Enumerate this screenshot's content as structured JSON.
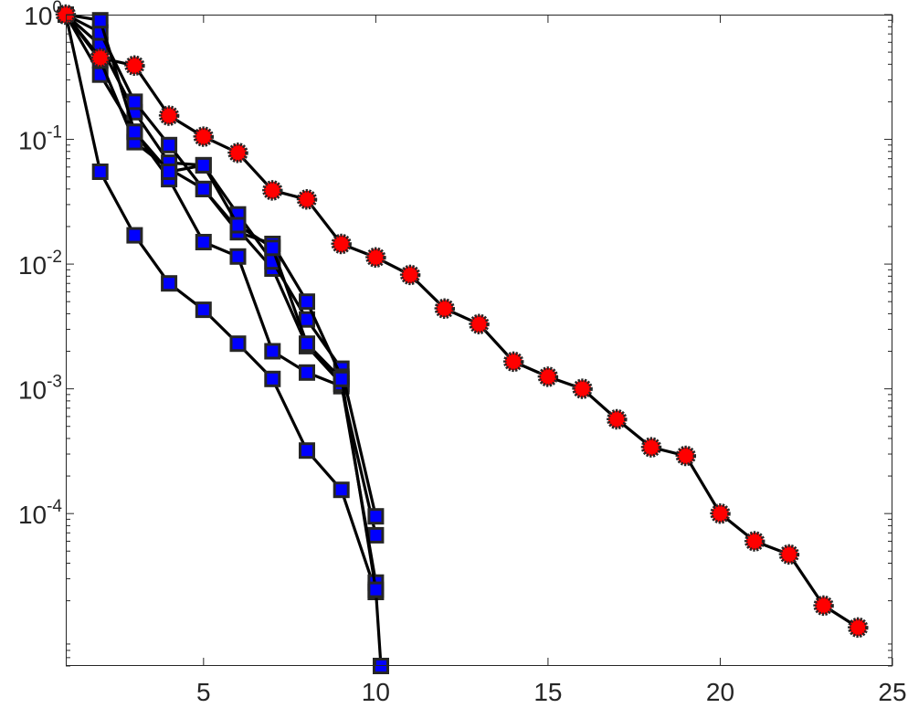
{
  "chart_data": {
    "type": "line",
    "y_scale": "log",
    "grid": false,
    "legend": "none",
    "xlim": [
      1,
      25
    ],
    "ylim": [
      6e-06,
      1
    ],
    "x_ticks": [
      {
        "value": 5,
        "label": "5"
      },
      {
        "value": 10,
        "label": "10"
      },
      {
        "value": 15,
        "label": "15"
      },
      {
        "value": 20,
        "label": "20"
      },
      {
        "value": 25,
        "label": "25"
      }
    ],
    "y_ticks": [
      {
        "value": 1,
        "base": "10",
        "exp": "0"
      },
      {
        "value": 0.1,
        "base": "10",
        "exp": "-1"
      },
      {
        "value": 0.01,
        "base": "10",
        "exp": "-2"
      },
      {
        "value": 0.001,
        "base": "10",
        "exp": "-3"
      },
      {
        "value": 0.0001,
        "base": "10",
        "exp": "-4"
      }
    ],
    "series": [
      {
        "marker": "square",
        "color": "#0000ff",
        "line_color": "#000000",
        "points": [
          [
            1,
            1
          ],
          [
            2,
            0.055
          ],
          [
            3,
            0.017
          ],
          [
            4,
            0.007
          ],
          [
            5,
            0.0043
          ],
          [
            6,
            0.0023
          ],
          [
            7,
            0.0012
          ],
          [
            8,
            0.00032
          ],
          [
            9,
            0.000155
          ],
          [
            10,
            2.35e-05
          ]
        ]
      },
      {
        "marker": "square",
        "color": "#0000ff",
        "line_color": "#000000",
        "points": [
          [
            1,
            1
          ],
          [
            2,
            0.33
          ],
          [
            3,
            0.115
          ],
          [
            4,
            0.048
          ],
          [
            5,
            0.015
          ],
          [
            6,
            0.0115
          ],
          [
            7,
            0.002
          ],
          [
            8,
            0.00135
          ],
          [
            9,
            0.00105
          ],
          [
            10,
            6.7e-05
          ]
        ]
      },
      {
        "marker": "square",
        "color": "#0000ff",
        "line_color": "#000000",
        "points": [
          [
            1,
            1
          ],
          [
            2,
            0.43
          ],
          [
            3,
            0.095
          ],
          [
            4,
            0.058
          ],
          [
            5,
            0.04
          ],
          [
            6,
            0.019
          ],
          [
            7,
            0.0092
          ],
          [
            8,
            0.0022
          ],
          [
            9,
            0.0011
          ],
          [
            10,
            2.8e-05
          ]
        ]
      },
      {
        "marker": "square",
        "color": "#0000ff",
        "line_color": "#000000",
        "points": [
          [
            1,
            1
          ],
          [
            2,
            0.57
          ],
          [
            3,
            0.165
          ],
          [
            4,
            0.065
          ],
          [
            5,
            0.062
          ],
          [
            6,
            0.025
          ],
          [
            7,
            0.0105
          ],
          [
            8,
            0.0036
          ],
          [
            9,
            0.00145
          ],
          [
            10,
            9.5e-05
          ]
        ]
      },
      {
        "marker": "square",
        "color": "#0000ff",
        "line_color": "#000000",
        "points": [
          [
            1,
            1
          ],
          [
            2,
            0.72
          ],
          [
            3,
            0.2
          ],
          [
            4,
            0.09
          ],
          [
            5,
            0.04
          ],
          [
            6,
            0.018
          ],
          [
            7,
            0.0145
          ],
          [
            8,
            0.005
          ],
          [
            9,
            0.00125
          ],
          [
            10,
            2.45e-05
          ],
          [
            10.15,
            6e-06
          ]
        ]
      },
      {
        "marker": "square",
        "color": "#0000ff",
        "line_color": "#000000",
        "points": [
          [
            1,
            1
          ],
          [
            2,
            0.9
          ],
          [
            3,
            0.115
          ],
          [
            4,
            0.055
          ],
          [
            5,
            0.062
          ],
          [
            6,
            0.0205
          ],
          [
            7,
            0.0135
          ],
          [
            8,
            0.0023
          ],
          [
            9,
            0.0012
          ]
        ]
      },
      {
        "marker": "circle",
        "color": "#ff0000",
        "line_color": "#000000",
        "points": [
          [
            1,
            1
          ],
          [
            2,
            0.45
          ],
          [
            3,
            0.39
          ],
          [
            4,
            0.155
          ],
          [
            5,
            0.105
          ],
          [
            6,
            0.078
          ],
          [
            7,
            0.039
          ],
          [
            8,
            0.033
          ],
          [
            9,
            0.0145
          ],
          [
            10,
            0.0113
          ],
          [
            11,
            0.0082
          ],
          [
            12,
            0.0044
          ],
          [
            13,
            0.0033
          ],
          [
            14,
            0.00165
          ],
          [
            15,
            0.00125
          ],
          [
            16,
            0.001
          ],
          [
            17,
            0.00057
          ],
          [
            18,
            0.00034
          ],
          [
            19,
            0.00029
          ],
          [
            20,
            0.0001
          ],
          [
            21,
            6e-05
          ],
          [
            22,
            4.7e-05
          ],
          [
            23,
            1.83e-05
          ],
          [
            24,
            1.22e-05
          ]
        ]
      }
    ]
  }
}
